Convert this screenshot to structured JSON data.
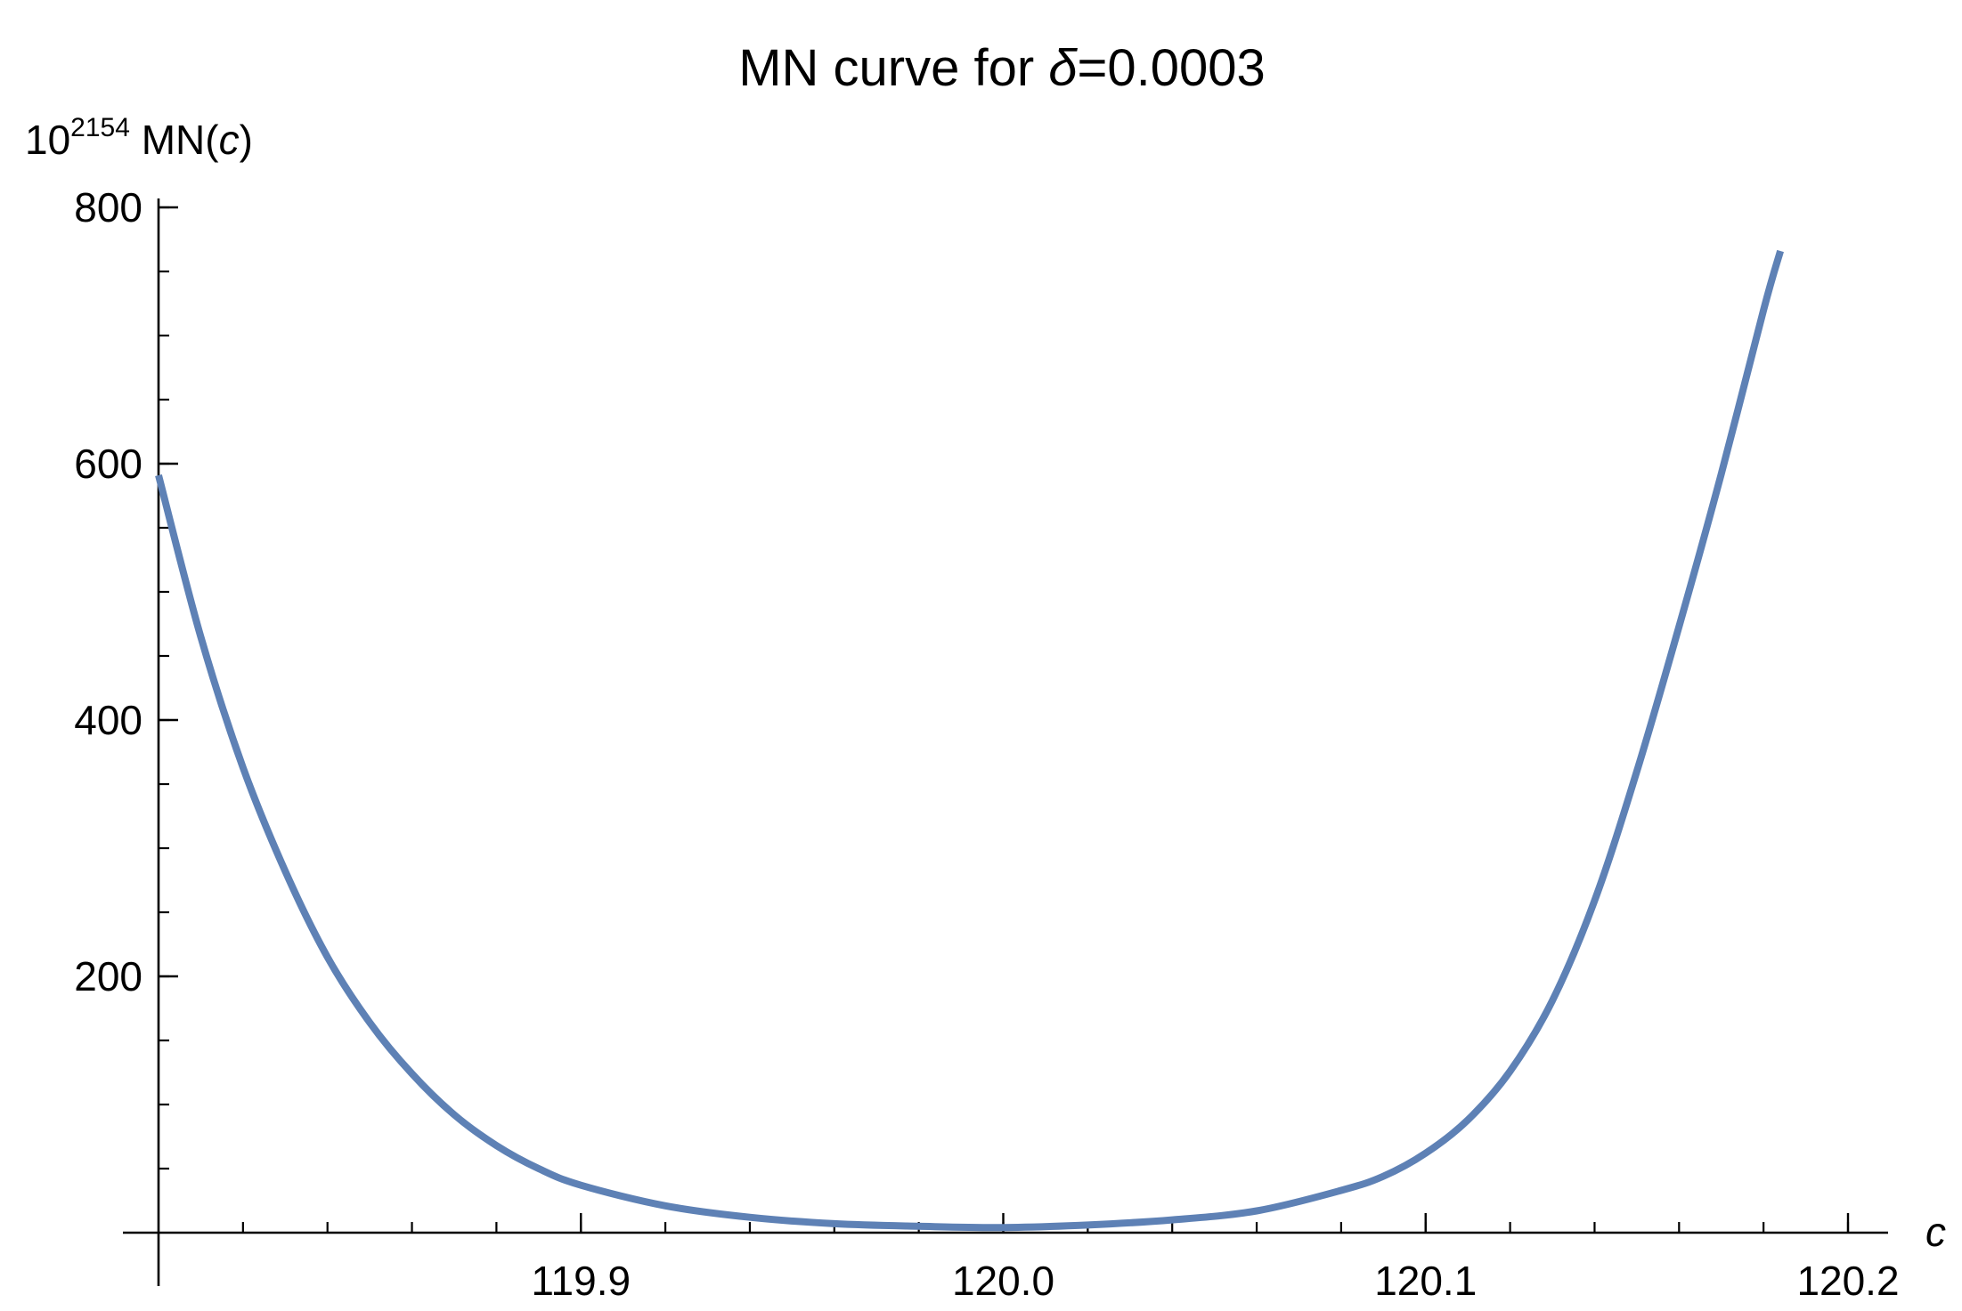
{
  "chart_data": {
    "type": "line",
    "title": {
      "prefix": "MN curve for ",
      "symbol": "δ",
      "suffix": "=0.0003"
    },
    "xlabel": "c",
    "ylabel": {
      "base": "10",
      "exponent": "2154",
      "text": " MN(",
      "var": "c",
      "close": ")"
    },
    "xlim": [
      119.8,
      120.2
    ],
    "ylim": [
      0,
      800
    ],
    "x_ticks": [
      {
        "value": 119.9,
        "label": "119.9"
      },
      {
        "value": 120.0,
        "label": "120.0"
      },
      {
        "value": 120.1,
        "label": "120.1"
      },
      {
        "value": 120.2,
        "label": "120.2"
      }
    ],
    "x_minor_step": 0.02,
    "y_ticks": [
      {
        "value": 200,
        "label": "200"
      },
      {
        "value": 400,
        "label": "400"
      },
      {
        "value": 600,
        "label": "600"
      },
      {
        "value": 800,
        "label": "800"
      }
    ],
    "y_minor_step": 50,
    "grid": false,
    "series": [
      {
        "color": "#5e81b5",
        "x": [
          119.8,
          119.81,
          119.82,
          119.83,
          119.84,
          119.85,
          119.86,
          119.87,
          119.88,
          119.89,
          119.9,
          119.92,
          119.94,
          119.96,
          119.98,
          120.0,
          120.02,
          120.04,
          120.06,
          120.08,
          120.09,
          120.1,
          120.11,
          120.12,
          120.13,
          120.14,
          120.15,
          120.16,
          120.17,
          120.18,
          120.184
        ],
        "y": [
          591,
          465,
          363,
          282,
          215,
          164,
          124,
          92,
          68,
          50,
          37,
          21,
          12,
          7,
          5,
          4,
          6,
          10,
          17,
          33,
          44,
          62,
          88,
          126,
          181,
          259,
          360,
          473,
          592,
          720,
          766
        ]
      }
    ]
  }
}
